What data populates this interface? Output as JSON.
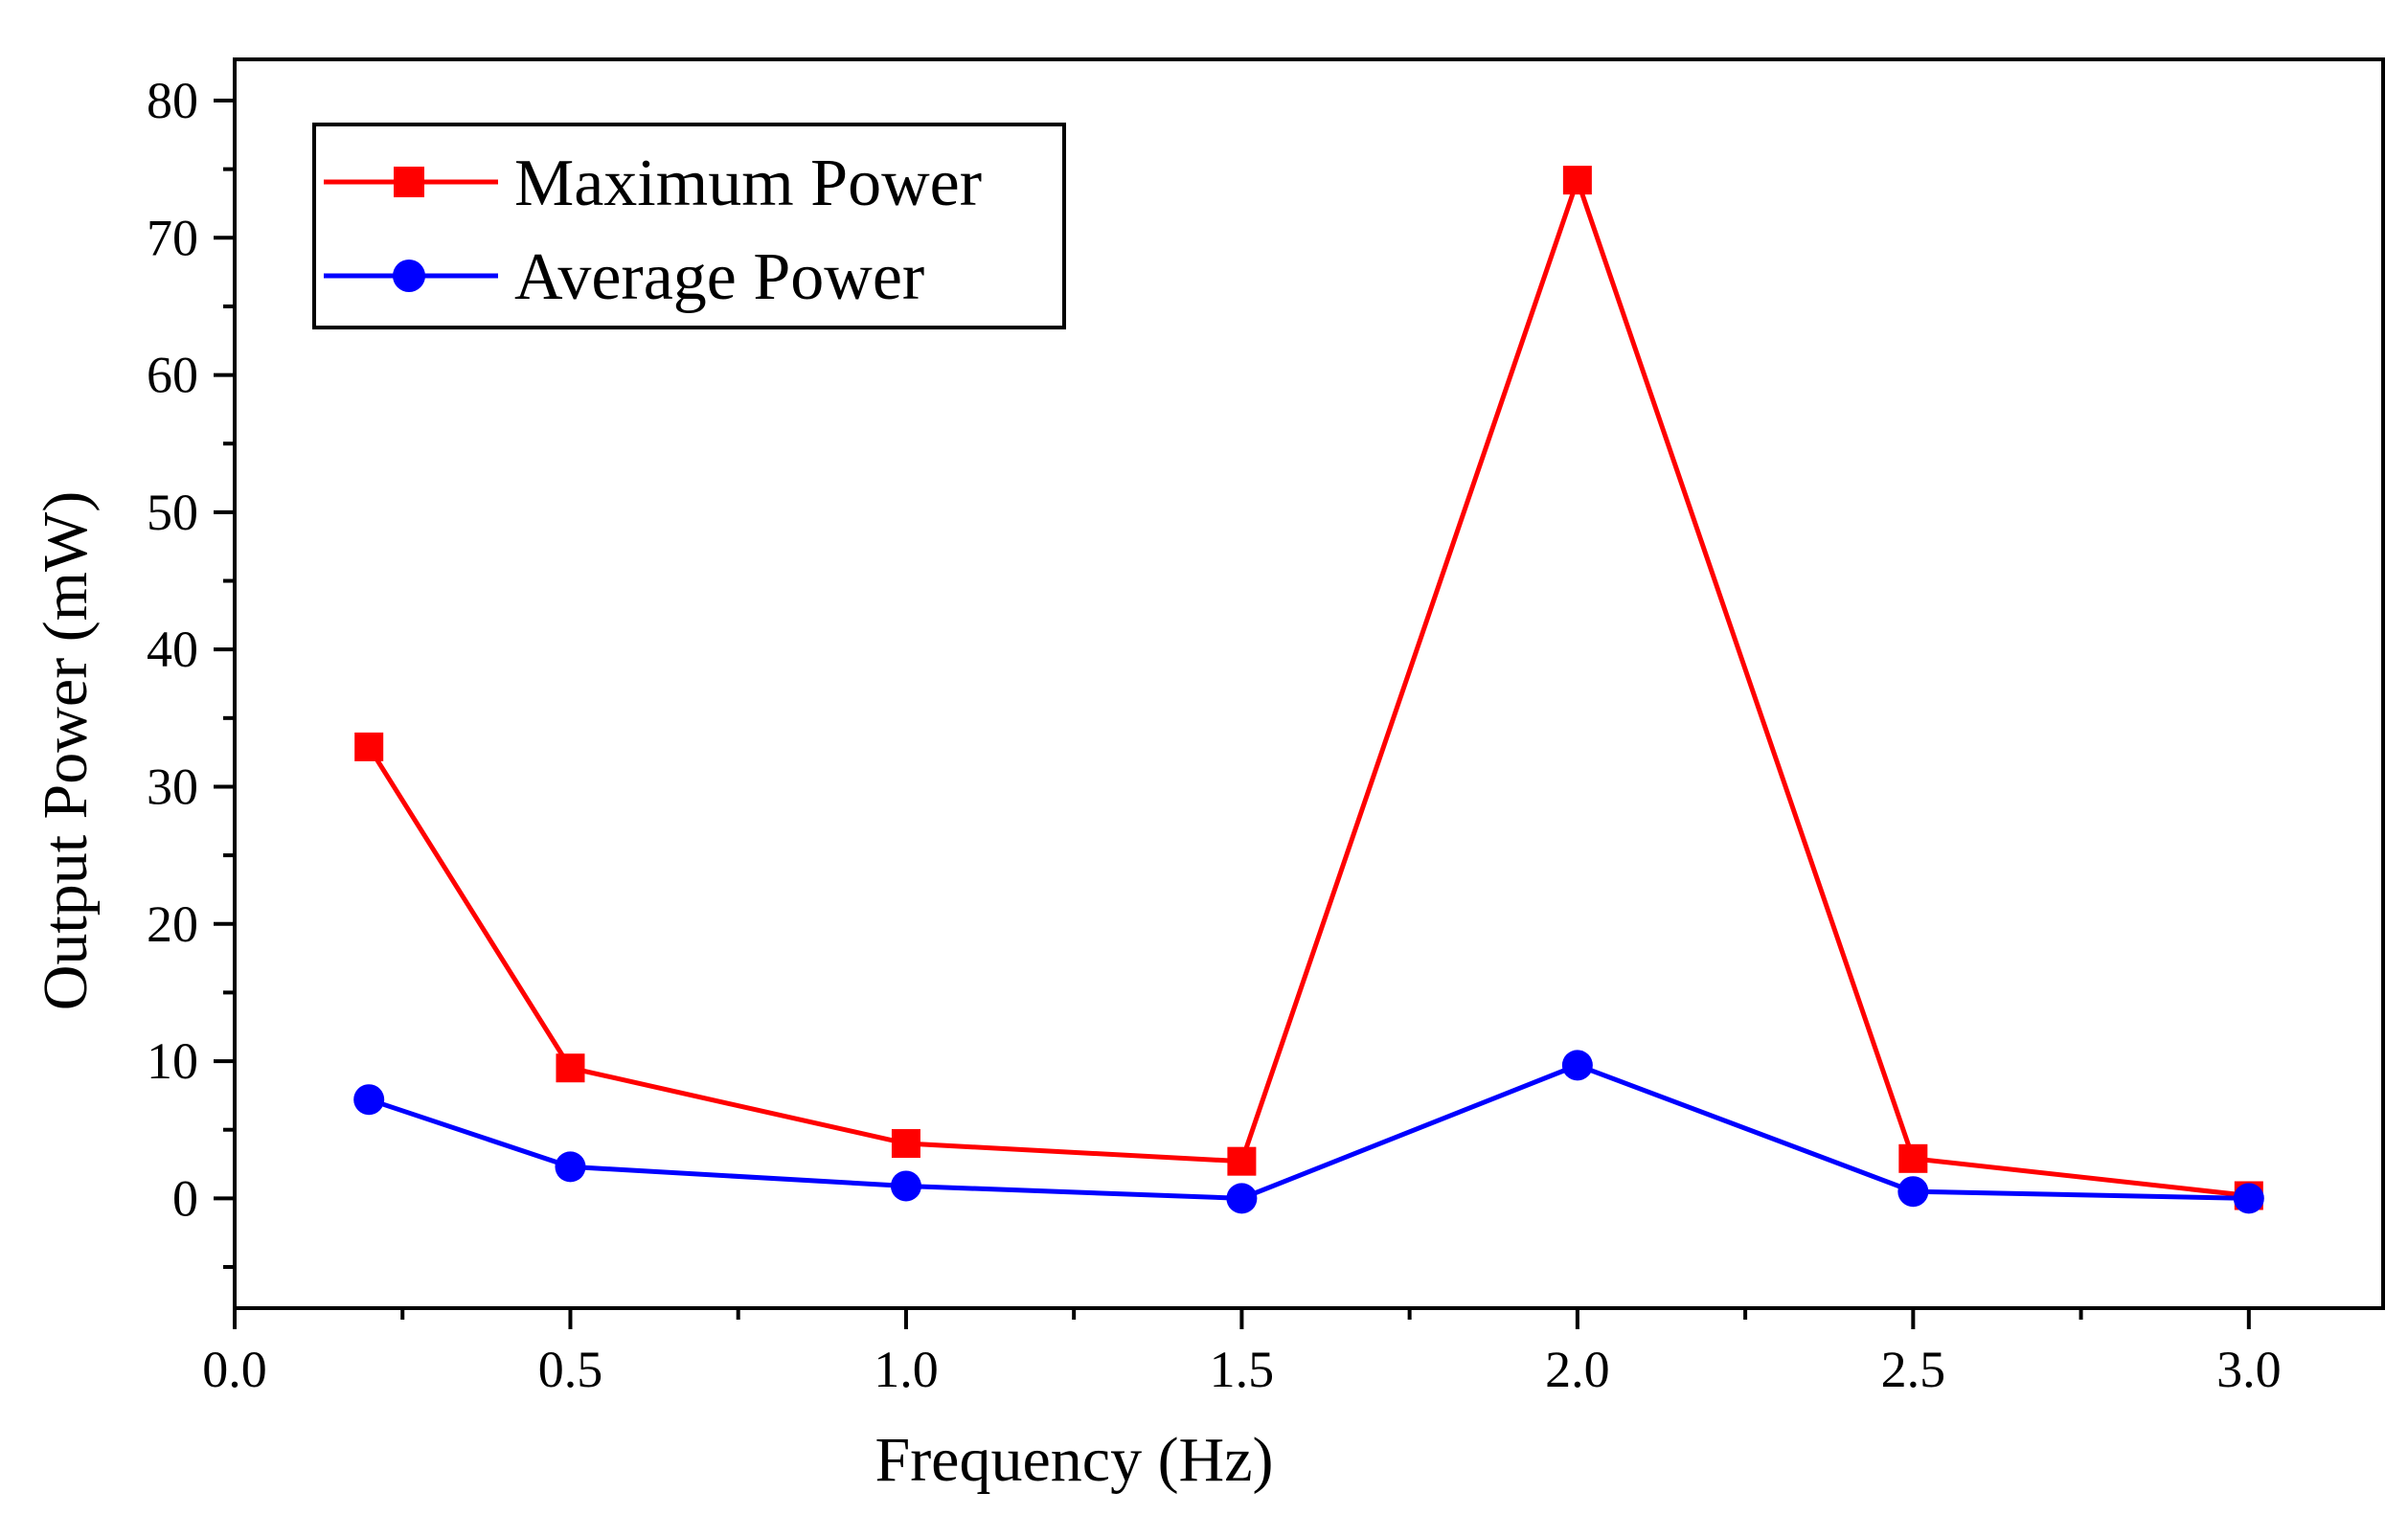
{
  "chart_data": {
    "type": "line",
    "title": "",
    "xlabel": "Frequency (Hz)",
    "ylabel": "Output Power (mW)",
    "xlim": [
      0.0,
      3.2
    ],
    "ylim": [
      -8,
      83
    ],
    "xticks": [
      0.0,
      0.5,
      1.0,
      1.5,
      2.0,
      2.5,
      3.0
    ],
    "xtick_labels": [
      "0.0",
      "0.5",
      "1.0",
      "1.5",
      "2.0",
      "2.5",
      "3.0"
    ],
    "yticks": [
      0,
      10,
      20,
      30,
      40,
      50,
      60,
      70,
      80
    ],
    "ytick_labels": [
      "0",
      "10",
      "20",
      "30",
      "40",
      "50",
      "60",
      "70",
      "80"
    ],
    "grid": false,
    "legend_position": "top-left",
    "x": [
      0.2,
      0.5,
      1.0,
      1.5,
      2.0,
      2.5,
      3.0
    ],
    "series": [
      {
        "name": "Maximum Power",
        "color": "#ff0000",
        "marker": "square",
        "values": [
          32.9,
          9.5,
          4.0,
          2.7,
          74.2,
          2.9,
          0.2
        ]
      },
      {
        "name": "Average Power",
        "color": "#0000ff",
        "marker": "circle",
        "values": [
          7.2,
          2.3,
          0.9,
          0.0,
          9.7,
          0.5,
          0.0
        ]
      }
    ]
  }
}
